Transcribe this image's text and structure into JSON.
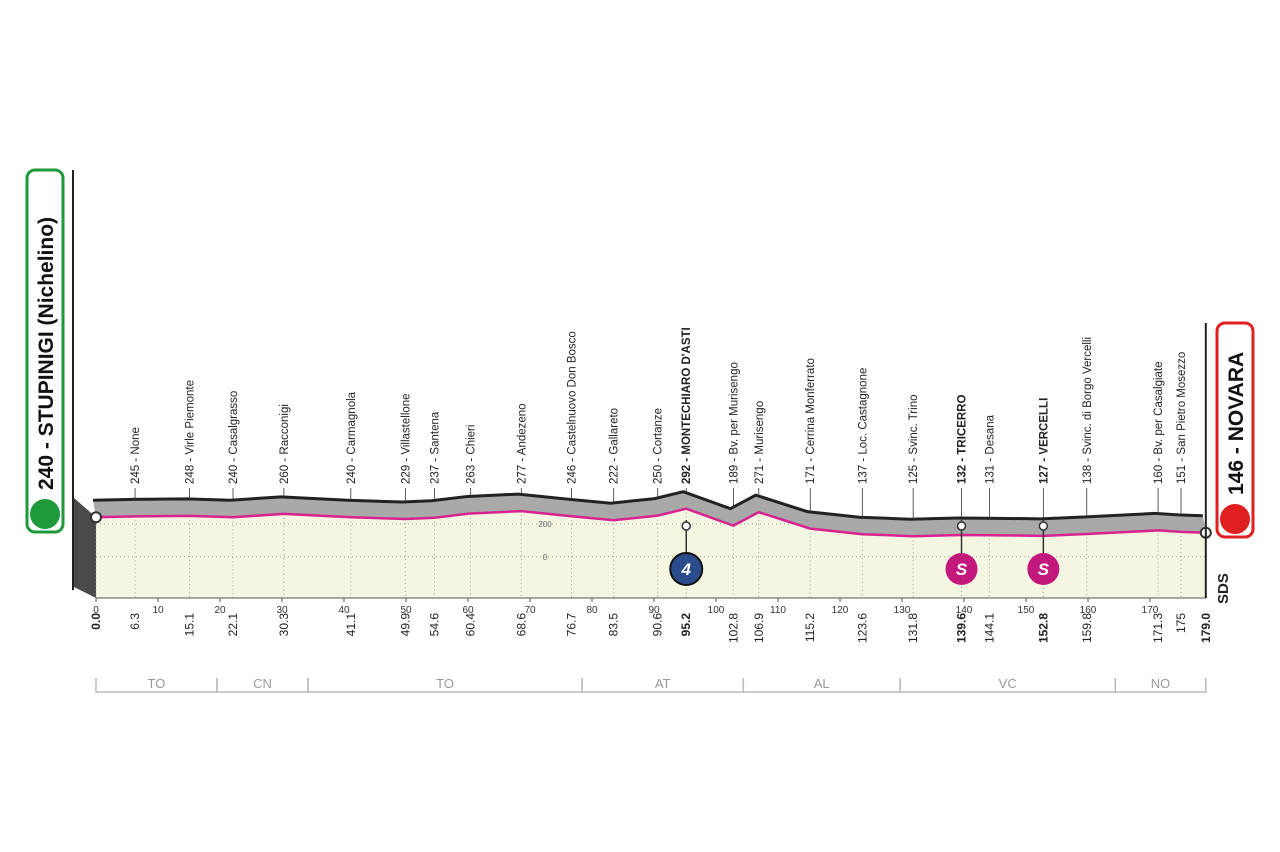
{
  "chart_data": {
    "type": "profile",
    "points": [
      {
        "label": "240 - STUPINIGI (Nichelino)",
        "km": {
          "value": 0,
          "label": "0.0"
        },
        "altitude": 240,
        "bold": true
      },
      {
        "label": "245 - None",
        "km": 6.3,
        "altitude": 245,
        "bold": false
      },
      {
        "label": "248 - Virle Piemonte",
        "km": 15.1,
        "altitude": 248,
        "bold": false
      },
      {
        "label": "240 - Casalgrasso",
        "km": 22.1,
        "altitude": 240,
        "bold": false
      },
      {
        "label": "260 - Racconigi",
        "km": 30.3,
        "altitude": 260,
        "bold": false
      },
      {
        "label": "240 - Carmagnola",
        "km": 41.1,
        "altitude": 240,
        "bold": false
      },
      {
        "label": "229 - Villastellone",
        "km": 49.9,
        "altitude": 229,
        "bold": false
      },
      {
        "label": "237 - Santena",
        "km": 54.6,
        "altitude": 237,
        "bold": false
      },
      {
        "label": "263 - Chieri",
        "km": 60.4,
        "altitude": 263,
        "bold": false
      },
      {
        "label": "277 - Andezeno",
        "km": 68.6,
        "altitude": 277,
        "bold": false
      },
      {
        "label": "246 - Castelnuovo Don Bosco",
        "km": 76.7,
        "altitude": 246,
        "bold": false
      },
      {
        "label": "222 - Gallareto",
        "km": 83.5,
        "altitude": 222,
        "bold": false
      },
      {
        "label": "250 - Cortanze",
        "km": 90.6,
        "altitude": 250,
        "bold": false
      },
      {
        "label": "292 - MONTECHIARO D'ASTI",
        "km": 95.2,
        "altitude": 292,
        "bold": true
      },
      {
        "label": "189 - Bv. per Murisengo",
        "km": 102.8,
        "altitude": 189,
        "bold": false
      },
      {
        "label": "271 - Murisengo",
        "km": 106.9,
        "altitude": 271,
        "bold": false
      },
      {
        "label": "171 - Cerrina Monferrato",
        "km": 115.2,
        "altitude": 171,
        "bold": false
      },
      {
        "label": "137 - Loc. Castagnone",
        "km": 123.6,
        "altitude": 137,
        "bold": false
      },
      {
        "label": "125 - Svinc. Trino",
        "km": 131.8,
        "altitude": 125,
        "bold": false
      },
      {
        "label": "132 - TRICERRO",
        "km": 139.6,
        "altitude": 132,
        "bold": true
      },
      {
        "label": "131 - Desana",
        "km": 144.1,
        "altitude": 131,
        "bold": false
      },
      {
        "label": "127 - VERCELLI",
        "km": 152.8,
        "altitude": 127,
        "bold": true
      },
      {
        "label": "138 - Svinc. di Borgo Vercelli",
        "km": 159.8,
        "altitude": 138,
        "bold": false
      },
      {
        "label": "160 - Bv. per Casalgiate",
        "km": 171.3,
        "altitude": 160,
        "bold": false
      },
      {
        "label": "151 - San Pietro Mosezzo",
        "km": 175.0,
        "altitude": 151,
        "bold": false
      },
      {
        "label": "146 - NOVARA",
        "km": {
          "value": 179,
          "label": "179.0"
        },
        "altitude": 146,
        "bold": true
      }
    ],
    "xlim": [
      0,
      179
    ],
    "xticks": [
      0,
      10,
      20,
      30,
      40,
      50,
      60,
      70,
      80,
      90,
      100,
      110,
      120,
      130,
      140,
      150,
      160,
      170
    ],
    "ylim": [
      -250,
      1200
    ],
    "yticks": [
      0,
      200
    ],
    "regions": [
      {
        "label": "TO",
        "from": 0,
        "to": 19.5
      },
      {
        "label": "CN",
        "from": 19.5,
        "to": 34.2
      },
      {
        "label": "TO",
        "from": 34.2,
        "to": 78.4
      },
      {
        "label": "AT",
        "from": 78.4,
        "to": 104.4
      },
      {
        "label": "AL",
        "from": 104.4,
        "to": 129.7
      },
      {
        "label": "VC",
        "from": 129.7,
        "to": 164.4
      },
      {
        "label": "NO",
        "from": 164.4,
        "to": 179
      }
    ],
    "markers": [
      {
        "label": "4",
        "km": 95.2,
        "kind": "kom",
        "color": "#2b4c8c"
      },
      {
        "label": "S",
        "km": 139.6,
        "kind": "sprint",
        "color": "#c2187c"
      },
      {
        "label": "S",
        "km": 152.8,
        "kind": "sprint",
        "color": "#c2187c"
      }
    ],
    "start_color": "#1f9a3a",
    "finish_color": "#e02020",
    "line_color": "#d6238f",
    "logo": "SDS"
  }
}
